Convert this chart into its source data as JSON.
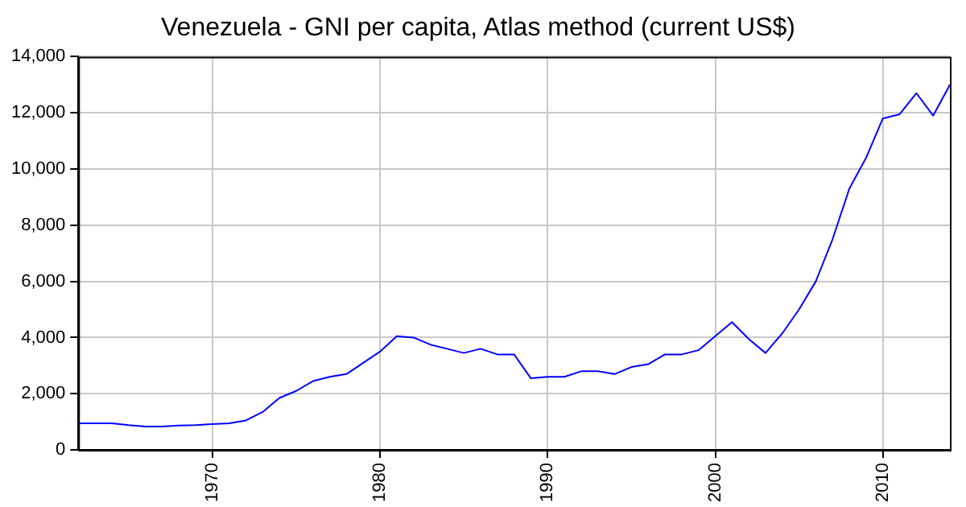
{
  "chart_data": {
    "type": "line",
    "title": "Venezuela - GNI per capita, Atlas method (current US$)",
    "x": [
      1962,
      1963,
      1964,
      1965,
      1966,
      1967,
      1968,
      1969,
      1970,
      1971,
      1972,
      1973,
      1974,
      1975,
      1976,
      1977,
      1978,
      1979,
      1980,
      1981,
      1982,
      1983,
      1984,
      1985,
      1986,
      1987,
      1988,
      1989,
      1990,
      1991,
      1992,
      1993,
      1994,
      1995,
      1996,
      1997,
      1998,
      1999,
      2000,
      2001,
      2002,
      2003,
      2004,
      2005,
      2006,
      2007,
      2008,
      2009,
      2010,
      2011,
      2012,
      2013,
      2014
    ],
    "series": [
      {
        "color": "#0000ff",
        "values": [
          950,
          950,
          950,
          880,
          830,
          830,
          870,
          880,
          920,
          950,
          1050,
          1350,
          1850,
          2100,
          2450,
          2600,
          2700,
          3100,
          3500,
          4050,
          4000,
          3750,
          3600,
          3450,
          3600,
          3400,
          3400,
          2550,
          2600,
          2600,
          2800,
          2800,
          2700,
          2950,
          3050,
          3400,
          3400,
          3550,
          4050,
          4550,
          3950,
          3450,
          4150,
          5000,
          6000,
          7500,
          9300,
          10400,
          11800,
          11950,
          12700,
          11900,
          13000
        ]
      }
    ],
    "xlim": [
      1962,
      2014
    ],
    "xticks": [
      1970,
      1980,
      1990,
      2000,
      2010
    ],
    "ylim": [
      0,
      14000
    ],
    "yticks": [
      {
        "value": 0,
        "label": "0"
      },
      {
        "value": 2000,
        "label": "2,000"
      },
      {
        "value": 4000,
        "label": "4,000"
      },
      {
        "value": 6000,
        "label": "6,000"
      },
      {
        "value": 8000,
        "label": "8,000"
      },
      {
        "value": 10000,
        "label": "10,000"
      },
      {
        "value": 12000,
        "label": "12,000"
      },
      {
        "value": 14000,
        "label": "14,000"
      }
    ],
    "grid": true,
    "legend": false,
    "marker": "none",
    "line_style": "solid"
  }
}
